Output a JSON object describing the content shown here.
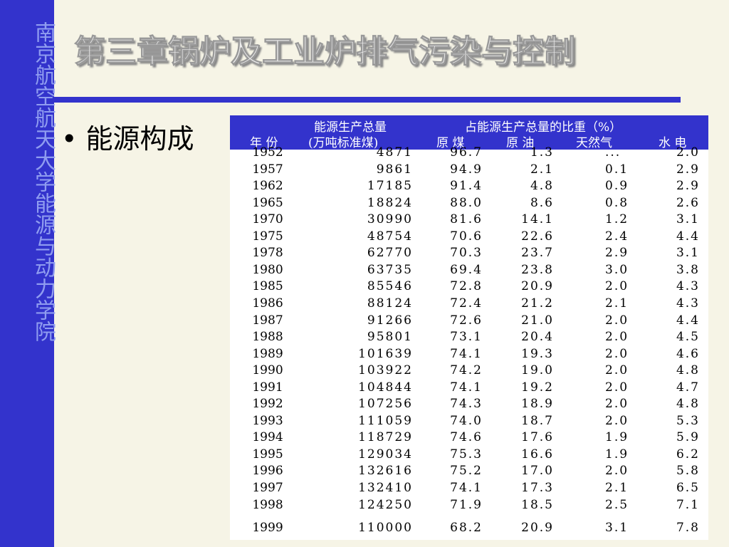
{
  "sidebar": {
    "text": "南京航空航天大学能源与动力学院"
  },
  "header": {
    "title": "第三章锅炉及工业炉排气污染与控制"
  },
  "bullet": "能源构成",
  "table": {
    "header": {
      "year": "年 份",
      "total_line1": "能源生产总量",
      "total_line2": "(万吨标准煤)",
      "share": "占能源生产总量的比重（%）",
      "coal": "原 煤",
      "oil": "原 油",
      "gas": "天然气",
      "hydro": "水 电"
    },
    "rows": [
      [
        "1952",
        "4871",
        "96.7",
        "1.3",
        "...",
        "2.0"
      ],
      [
        "1957",
        "9861",
        "94.9",
        "2.1",
        "0.1",
        "2.9"
      ],
      [
        "1962",
        "17185",
        "91.4",
        "4.8",
        "0.9",
        "2.9"
      ],
      [
        "1965",
        "18824",
        "88.0",
        "8.6",
        "0.8",
        "2.6"
      ],
      [
        "1970",
        "30990",
        "81.6",
        "14.1",
        "1.2",
        "3.1"
      ],
      [
        "1975",
        "48754",
        "70.6",
        "22.6",
        "2.4",
        "4.4"
      ],
      [
        "1978",
        "62770",
        "70.3",
        "23.7",
        "2.9",
        "3.1"
      ],
      [
        "1980",
        "63735",
        "69.4",
        "23.8",
        "3.0",
        "3.8"
      ],
      [
        "1985",
        "85546",
        "72.8",
        "20.9",
        "2.0",
        "4.3"
      ],
      [
        "1986",
        "88124",
        "72.4",
        "21.2",
        "2.1",
        "4.3"
      ],
      [
        "1987",
        "91266",
        "72.6",
        "21.0",
        "2.0",
        "4.4"
      ],
      [
        "1988",
        "95801",
        "73.1",
        "20.4",
        "2.0",
        "4.5"
      ],
      [
        "1989",
        "101639",
        "74.1",
        "19.3",
        "2.0",
        "4.6"
      ],
      [
        "1990",
        "103922",
        "74.2",
        "19.0",
        "2.0",
        "4.8"
      ],
      [
        "1991",
        "104844",
        "74.1",
        "19.2",
        "2.0",
        "4.7"
      ],
      [
        "1992",
        "107256",
        "74.3",
        "18.9",
        "2.0",
        "4.8"
      ],
      [
        "1993",
        "111059",
        "74.0",
        "18.7",
        "2.0",
        "5.3"
      ],
      [
        "1994",
        "118729",
        "74.6",
        "17.6",
        "1.9",
        "5.9"
      ],
      [
        "1995",
        "129034",
        "75.3",
        "16.6",
        "1.9",
        "6.2"
      ],
      [
        "1996",
        "132616",
        "75.2",
        "17.0",
        "2.0",
        "5.8"
      ],
      [
        "1997",
        "132410",
        "74.1",
        "17.3",
        "2.1",
        "6.5"
      ],
      [
        "1998",
        "124250",
        "71.9",
        "18.5",
        "2.5",
        "7.1"
      ],
      [
        "1999",
        "110000",
        "68.2",
        "20.9",
        "3.1",
        "7.8"
      ]
    ]
  }
}
